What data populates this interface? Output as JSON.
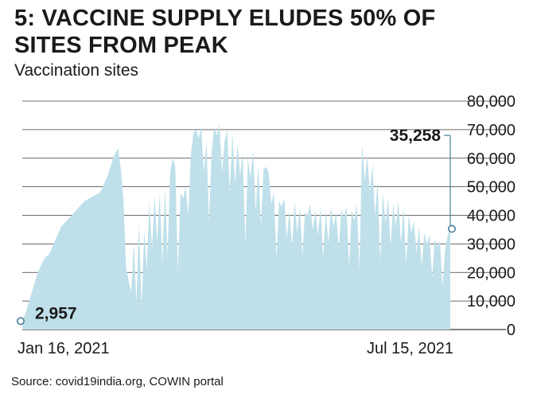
{
  "title": "5: VACCINE SUPPLY ELUDES 50% OF SITES FROM PEAK",
  "subtitle": "Vaccination sites",
  "source": "Source: covid19india.org, COWIN portal",
  "colors": {
    "area_fill": "#bfe0ea",
    "grid": "#3a3a3a",
    "marker_stroke": "#4a7f99",
    "marker_fill": "#ffffff",
    "text": "#1a1a1a"
  },
  "chart_data": {
    "type": "area",
    "title": "5: VACCINE SUPPLY ELUDES 50% OF SITES FROM PEAK",
    "subtitle": "Vaccination sites",
    "xlabel": "",
    "ylabel": "",
    "ylim": [
      0,
      80000
    ],
    "y_ticks": [
      0,
      10000,
      20000,
      30000,
      40000,
      50000,
      60000,
      70000,
      80000
    ],
    "y_tick_labels": [
      "0",
      "10,000",
      "20,000",
      "30,000",
      "40,000",
      "50,000",
      "60,000",
      "70,000",
      "80,000"
    ],
    "y_axis_side": "right",
    "grid": true,
    "x_start": "2021-01-16",
    "x_end": "2021-07-15",
    "x_labels": [
      {
        "date": "2021-01-16",
        "label": "Jan 16, 2021"
      },
      {
        "date": "2021-07-15",
        "label": "Jul 15, 2021"
      }
    ],
    "annotations": [
      {
        "date": "2021-01-16",
        "value": 2957,
        "label": "2,957"
      },
      {
        "date": "2021-07-15",
        "value": 35258,
        "label": "35,258"
      }
    ],
    "series": [
      {
        "values": [
          2957,
          5000,
          8000,
          11000,
          14000,
          17000,
          20000,
          22000,
          24000,
          25500,
          26000,
          27500,
          30000,
          32000,
          34000,
          36000,
          37000,
          38000,
          39000,
          40000,
          41000,
          42000,
          43000,
          44000,
          45000,
          45500,
          46000,
          46500,
          47000,
          47500,
          48000,
          50000,
          52000,
          54000,
          57000,
          60000,
          62000,
          63500,
          56000,
          46000,
          22000,
          17000,
          13000,
          31000,
          9000,
          38000,
          7000,
          35000,
          21000,
          45000,
          28000,
          47000,
          31000,
          48000,
          23000,
          50000,
          26000,
          55000,
          60000,
          57000,
          20000,
          48000,
          46000,
          50000,
          40000,
          61000,
          69000,
          70000,
          67000,
          71000,
          55000,
          66000,
          38000,
          62000,
          71000,
          68000,
          72000,
          55000,
          66000,
          70000,
          48000,
          69000,
          51000,
          65000,
          54000,
          62000,
          30000,
          60000,
          53000,
          63000,
          41000,
          58000,
          36000,
          56000,
          57000,
          55000,
          44000,
          48000,
          25000,
          45000,
          43000,
          46000,
          32000,
          42000,
          29000,
          45000,
          34000,
          43000,
          26000,
          41000,
          40000,
          44000,
          35000,
          42000,
          33000,
          43000,
          25000,
          42000,
          30000,
          43000,
          36000,
          41000,
          28000,
          42000,
          39000,
          43000,
          22000,
          42000,
          38000,
          44000,
          21000,
          65000,
          52000,
          61000,
          48000,
          58000,
          40000,
          52000,
          24000,
          48000,
          37000,
          46000,
          29000,
          44000,
          36000,
          45000,
          30000,
          43000,
          23000,
          40000,
          34000,
          38000,
          27000,
          36000,
          22000,
          34000,
          30000,
          33000,
          18000,
          32000,
          29000,
          31000,
          15000,
          28000,
          33000,
          35258
        ]
      }
    ]
  }
}
